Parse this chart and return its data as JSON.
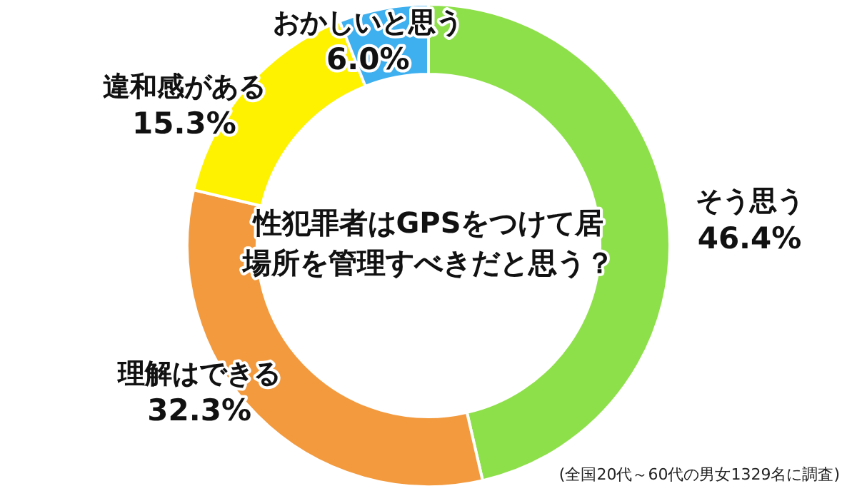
{
  "chart_data": {
    "type": "donut",
    "title": "性犯罪者はGPSをつけて居場所を管理すべきだと思う？",
    "categories": [
      "そう思う",
      "理解はできる",
      "違和感がある",
      "おかしいと思う"
    ],
    "values": [
      46.4,
      32.3,
      15.3,
      6.0
    ],
    "value_labels": [
      "46.4%",
      "32.3%",
      "15.3%",
      "6.0%"
    ],
    "colors": [
      "#8ee04a",
      "#f39a3e",
      "#fef200",
      "#3fb0ef"
    ],
    "legend": false,
    "annotations": [
      "(全国20代～60代の男女1329名に調査)"
    ]
  }
}
